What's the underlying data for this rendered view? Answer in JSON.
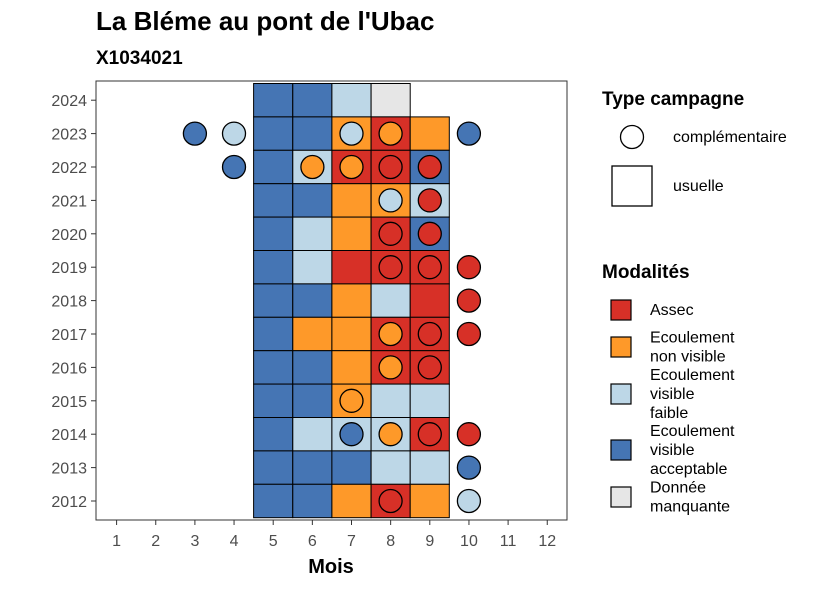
{
  "chart_data": {
    "type": "heatmap",
    "title": "La Bléme au pont de l'Ubac",
    "subtitle": "X1034021",
    "xlabel": "Mois",
    "ylabel": "",
    "x_ticks": [
      "1",
      "2",
      "3",
      "4",
      "5",
      "6",
      "7",
      "8",
      "9",
      "10",
      "11",
      "12"
    ],
    "years": [
      2012,
      2013,
      2014,
      2015,
      2016,
      2017,
      2018,
      2019,
      2020,
      2021,
      2022,
      2023,
      2024
    ],
    "colors": {
      "assec": "#d73027",
      "ecoulement_non_visible": "#fe9929",
      "ecoulement_visible_faible": "#bdd7e7",
      "ecoulement_visible_acceptable": "#4575b4",
      "donnee_manquante": "#e6e6e6"
    },
    "legend_campaign": {
      "title": "Type campagne",
      "items": [
        {
          "shape": "circle",
          "label": "complémentaire"
        },
        {
          "shape": "square",
          "label": "usuelle"
        }
      ]
    },
    "legend_modalites": {
      "title": "Modalités",
      "items": [
        {
          "key": "assec",
          "lines": [
            "Assec"
          ]
        },
        {
          "key": "ecoulement_non_visible",
          "lines": [
            "Ecoulement",
            "non visible"
          ]
        },
        {
          "key": "ecoulement_visible_faible",
          "lines": [
            "Ecoulement",
            "visible",
            "faible"
          ]
        },
        {
          "key": "ecoulement_visible_acceptable",
          "lines": [
            "Ecoulement",
            "visible",
            "acceptable"
          ]
        },
        {
          "key": "donnee_manquante",
          "lines": [
            "Donnée",
            "manquante"
          ]
        }
      ]
    },
    "usuelle": [
      {
        "year": 2024,
        "cells": {
          "5": "ecoulement_visible_acceptable",
          "6": "ecoulement_visible_acceptable",
          "7": "ecoulement_visible_faible",
          "8": "donnee_manquante"
        }
      },
      {
        "year": 2023,
        "cells": {
          "5": "ecoulement_visible_acceptable",
          "6": "ecoulement_visible_acceptable",
          "7": "ecoulement_non_visible",
          "8": "assec",
          "9": "ecoulement_non_visible"
        }
      },
      {
        "year": 2022,
        "cells": {
          "5": "ecoulement_visible_acceptable",
          "6": "ecoulement_visible_faible",
          "7": "assec",
          "8": "assec",
          "9": "ecoulement_visible_acceptable"
        }
      },
      {
        "year": 2021,
        "cells": {
          "5": "ecoulement_visible_acceptable",
          "6": "ecoulement_visible_acceptable",
          "7": "ecoulement_non_visible",
          "8": "ecoulement_non_visible",
          "9": "ecoulement_visible_faible"
        }
      },
      {
        "year": 2020,
        "cells": {
          "5": "ecoulement_visible_acceptable",
          "6": "ecoulement_visible_faible",
          "7": "ecoulement_non_visible",
          "8": "assec",
          "9": "ecoulement_visible_acceptable"
        }
      },
      {
        "year": 2019,
        "cells": {
          "5": "ecoulement_visible_acceptable",
          "6": "ecoulement_visible_faible",
          "7": "assec",
          "8": "assec",
          "9": "assec"
        }
      },
      {
        "year": 2018,
        "cells": {
          "5": "ecoulement_visible_acceptable",
          "6": "ecoulement_visible_acceptable",
          "7": "ecoulement_non_visible",
          "8": "ecoulement_visible_faible",
          "9": "assec"
        }
      },
      {
        "year": 2017,
        "cells": {
          "5": "ecoulement_visible_acceptable",
          "6": "ecoulement_non_visible",
          "7": "ecoulement_non_visible",
          "8": "assec",
          "9": "assec"
        }
      },
      {
        "year": 2016,
        "cells": {
          "5": "ecoulement_visible_acceptable",
          "6": "ecoulement_visible_acceptable",
          "7": "ecoulement_non_visible",
          "8": "assec",
          "9": "assec"
        }
      },
      {
        "year": 2015,
        "cells": {
          "5": "ecoulement_visible_acceptable",
          "6": "ecoulement_visible_acceptable",
          "7": "ecoulement_non_visible",
          "8": "ecoulement_visible_faible",
          "9": "ecoulement_visible_faible"
        }
      },
      {
        "year": 2014,
        "cells": {
          "5": "ecoulement_visible_acceptable",
          "6": "ecoulement_visible_faible",
          "7": "ecoulement_visible_faible",
          "8": "ecoulement_visible_faible",
          "9": "assec"
        }
      },
      {
        "year": 2013,
        "cells": {
          "5": "ecoulement_visible_acceptable",
          "6": "ecoulement_visible_acceptable",
          "7": "ecoulement_visible_acceptable",
          "8": "ecoulement_visible_faible",
          "9": "ecoulement_visible_faible"
        }
      },
      {
        "year": 2012,
        "cells": {
          "5": "ecoulement_visible_acceptable",
          "6": "ecoulement_visible_acceptable",
          "7": "ecoulement_non_visible",
          "8": "assec",
          "9": "ecoulement_non_visible"
        }
      }
    ],
    "complementaire": [
      {
        "year": 2023,
        "cells": {
          "3": "ecoulement_visible_acceptable",
          "4": "ecoulement_visible_faible",
          "7": "ecoulement_visible_faible",
          "8": "ecoulement_non_visible",
          "10": "ecoulement_visible_acceptable"
        }
      },
      {
        "year": 2022,
        "cells": {
          "4": "ecoulement_visible_acceptable",
          "6": "ecoulement_non_visible",
          "7": "ecoulement_non_visible",
          "8": "assec",
          "9": "assec"
        }
      },
      {
        "year": 2021,
        "cells": {
          "8": "ecoulement_visible_faible",
          "9": "assec"
        }
      },
      {
        "year": 2020,
        "cells": {
          "8": "assec",
          "9": "assec"
        }
      },
      {
        "year": 2019,
        "cells": {
          "8": "assec",
          "9": "assec",
          "10": "assec"
        }
      },
      {
        "year": 2018,
        "cells": {
          "10": "assec"
        }
      },
      {
        "year": 2017,
        "cells": {
          "8": "ecoulement_non_visible",
          "9": "assec",
          "10": "assec"
        }
      },
      {
        "year": 2016,
        "cells": {
          "8": "ecoulement_non_visible",
          "9": "assec"
        }
      },
      {
        "year": 2015,
        "cells": {
          "7": "ecoulement_non_visible"
        }
      },
      {
        "year": 2014,
        "cells": {
          "7": "ecoulement_visible_acceptable",
          "8": "ecoulement_non_visible",
          "9": "assec",
          "10": "assec"
        }
      },
      {
        "year": 2013,
        "cells": {
          "10": "ecoulement_visible_acceptable"
        }
      },
      {
        "year": 2012,
        "cells": {
          "8": "assec",
          "10": "ecoulement_visible_faible"
        }
      }
    ]
  }
}
